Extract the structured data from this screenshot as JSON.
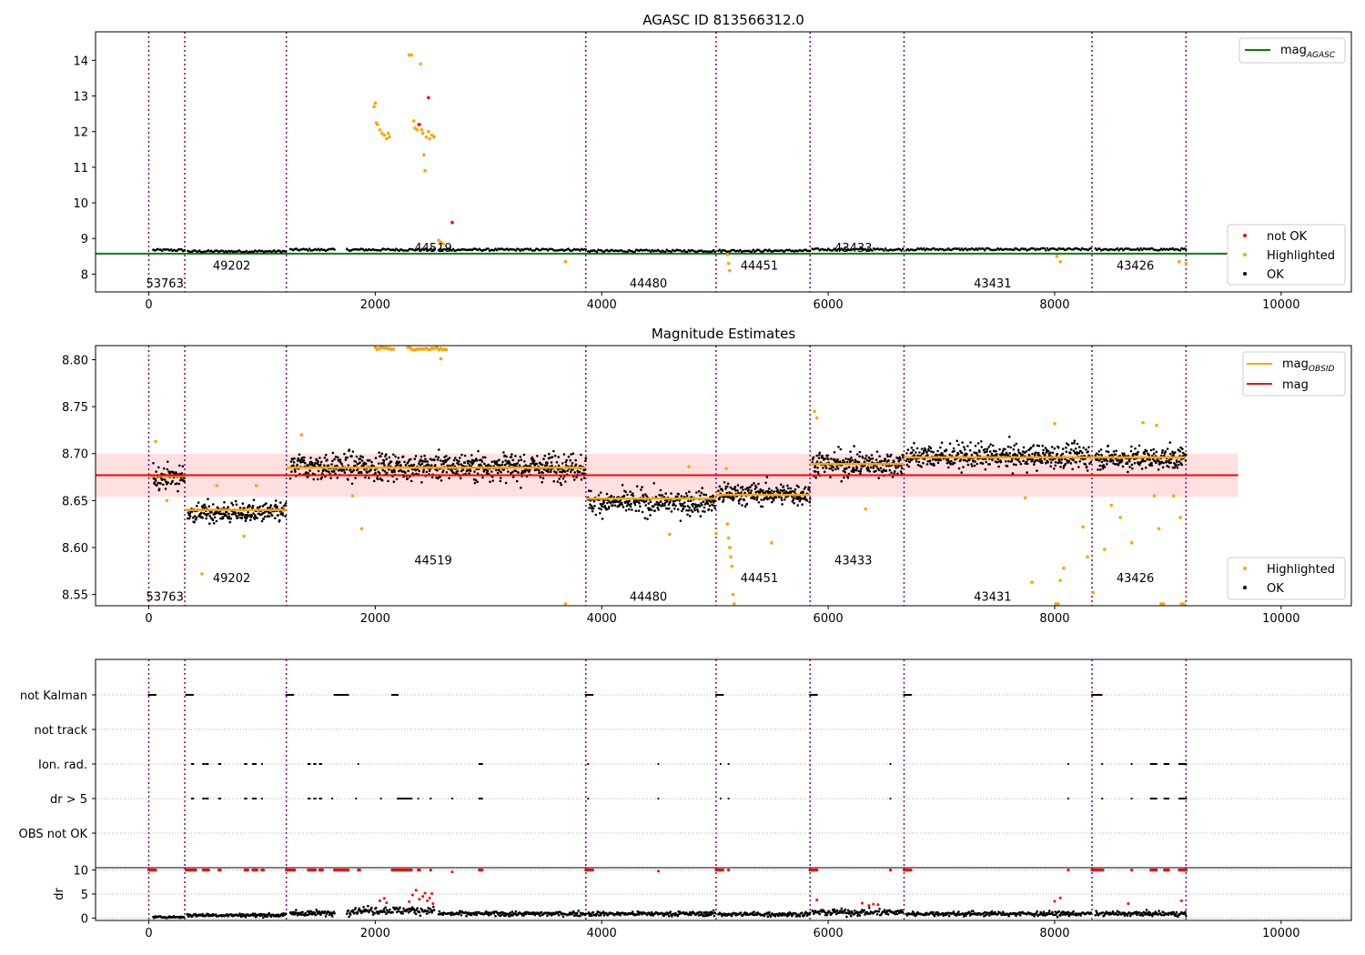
{
  "chart_data": [
    {
      "type": "scatter",
      "title": "AGASC ID 813566312.0",
      "xlim": [
        -470,
        10620
      ],
      "ylim": [
        7.5,
        14.8
      ],
      "xticks": [
        0,
        2000,
        4000,
        6000,
        8000,
        10000
      ],
      "yticks": [
        8,
        9,
        10,
        11,
        12,
        13,
        14
      ],
      "obsid_boundaries": [
        0,
        318,
        1215,
        3860,
        5010,
        5840,
        6670,
        8330,
        9160
      ],
      "obsid_labels": [
        {
          "text": "53763",
          "x": 0,
          "y": 7.75
        },
        {
          "text": "49202",
          "x": 590,
          "y": 8.25
        },
        {
          "text": "44519",
          "x": 2370,
          "y": 8.75
        },
        {
          "text": "44480",
          "x": 4270,
          "y": 7.75
        },
        {
          "text": "44451",
          "x": 5250,
          "y": 8.25
        },
        {
          "text": "43433",
          "x": 6080,
          "y": 8.75
        },
        {
          "text": "43431",
          "x": 7310,
          "y": 7.75
        },
        {
          "text": "43426",
          "x": 8570,
          "y": 8.25
        }
      ],
      "mag_agasc": 8.575,
      "mag_agasc_xrange": [
        -470,
        9620
      ],
      "ok_segments": [
        {
          "x0": 40,
          "x1": 315,
          "y": 8.675
        },
        {
          "x0": 345,
          "x1": 1210,
          "y": 8.64
        },
        {
          "x0": 1250,
          "x1": 1640,
          "y": 8.685
        },
        {
          "x0": 1750,
          "x1": 2520,
          "y": 8.685
        },
        {
          "x0": 2560,
          "x1": 3860,
          "y": 8.685
        },
        {
          "x0": 3880,
          "x1": 5000,
          "y": 8.652
        },
        {
          "x0": 5030,
          "x1": 5840,
          "y": 8.657
        },
        {
          "x0": 5860,
          "x1": 6660,
          "y": 8.69
        },
        {
          "x0": 6690,
          "x1": 8320,
          "y": 8.697
        },
        {
          "x0": 8360,
          "x1": 9160,
          "y": 8.695
        }
      ],
      "highlighted_points": [
        [
          1990,
          12.7
        ],
        [
          2000,
          12.8
        ],
        [
          2010,
          12.25
        ],
        [
          2020,
          12.2
        ],
        [
          2040,
          12.05
        ],
        [
          2060,
          11.95
        ],
        [
          2080,
          11.9
        ],
        [
          2100,
          11.8
        ],
        [
          2115,
          11.95
        ],
        [
          2125,
          11.85
        ],
        [
          2300,
          14.15
        ],
        [
          2320,
          14.15
        ],
        [
          2340,
          12.3
        ],
        [
          2350,
          12.1
        ],
        [
          2370,
          12.05
        ],
        [
          2380,
          12.2
        ],
        [
          2400,
          13.9
        ],
        [
          2410,
          12.05
        ],
        [
          2420,
          11.95
        ],
        [
          2430,
          11.35
        ],
        [
          2440,
          10.9
        ],
        [
          2450,
          11.85
        ],
        [
          2470,
          12.0
        ],
        [
          2480,
          11.8
        ],
        [
          2500,
          11.9
        ],
        [
          2520,
          11.85
        ],
        [
          2560,
          8.95
        ],
        [
          2580,
          8.9
        ],
        [
          2600,
          8.85
        ],
        [
          3680,
          8.35
        ],
        [
          5110,
          8.55
        ],
        [
          5120,
          8.3
        ],
        [
          5130,
          8.1
        ],
        [
          8020,
          8.5
        ],
        [
          8050,
          8.35
        ],
        [
          9100,
          8.35
        ],
        [
          9160,
          8.3
        ]
      ],
      "not_ok_points": [
        [
          2470,
          12.95
        ],
        [
          2680,
          9.45
        ],
        [
          2390,
          12.2
        ]
      ],
      "legend_upper": {
        "position": "upper right",
        "entries": [
          {
            "label": "mag",
            "sub": "AGASC",
            "color": "#008000"
          }
        ]
      },
      "legend_lower": {
        "position": "lower right",
        "entries": [
          {
            "label": "not OK",
            "color": "#ff0000"
          },
          {
            "label": "Highlighted",
            "color": "#ffa500"
          },
          {
            "label": "OK",
            "color": "#000000"
          }
        ]
      }
    },
    {
      "type": "scatter",
      "title": "Magnitude Estimates",
      "xlim": [
        -470,
        10620
      ],
      "ylim": [
        8.538,
        8.815
      ],
      "xticks": [
        0,
        2000,
        4000,
        6000,
        8000,
        10000
      ],
      "yticks": [
        8.55,
        8.6,
        8.65,
        8.7,
        8.75,
        8.8
      ],
      "ytick_labels": [
        "8.55",
        "8.60",
        "8.65",
        "8.70",
        "8.75",
        "8.80"
      ],
      "mag": 8.677,
      "mag_band": [
        8.654,
        8.7
      ],
      "mag_xrange": [
        -470,
        9620
      ],
      "mag_obsid": [
        {
          "x0": 0,
          "x1": 318,
          "y": 8.676
        },
        {
          "x0": 318,
          "x1": 1215,
          "y": 8.64
        },
        {
          "x0": 1215,
          "x1": 3860,
          "y": 8.685
        },
        {
          "x0": 3860,
          "x1": 5010,
          "y": 8.652
        },
        {
          "x0": 5010,
          "x1": 5840,
          "y": 8.656
        },
        {
          "x0": 5840,
          "x1": 6670,
          "y": 8.689
        },
        {
          "x0": 6670,
          "x1": 8330,
          "y": 8.696
        },
        {
          "x0": 8330,
          "x1": 9160,
          "y": 8.696
        }
      ],
      "obsid_labels": [
        {
          "text": "53763",
          "x": 0,
          "y": 8.548
        },
        {
          "text": "49202",
          "x": 590,
          "y": 8.568
        },
        {
          "text": "44519",
          "x": 2370,
          "y": 8.587
        },
        {
          "text": "44480",
          "x": 4270,
          "y": 8.548
        },
        {
          "text": "44451",
          "x": 5250,
          "y": 8.568
        },
        {
          "text": "43433",
          "x": 6080,
          "y": 8.587
        },
        {
          "text": "43431",
          "x": 7310,
          "y": 8.548
        },
        {
          "text": "43426",
          "x": 8570,
          "y": 8.568
        }
      ],
      "ok_segments": [
        {
          "x0": 40,
          "x1": 315,
          "y": 8.675,
          "s": 0.01
        },
        {
          "x0": 345,
          "x1": 1210,
          "y": 8.637,
          "s": 0.009
        },
        {
          "x0": 1250,
          "x1": 3860,
          "y": 8.686,
          "s": 0.012
        },
        {
          "x0": 3880,
          "x1": 5000,
          "y": 8.648,
          "s": 0.011
        },
        {
          "x0": 5030,
          "x1": 5840,
          "y": 8.657,
          "s": 0.01
        },
        {
          "x0": 5860,
          "x1": 6660,
          "y": 8.689,
          "s": 0.012
        },
        {
          "x0": 6690,
          "x1": 8320,
          "y": 8.697,
          "s": 0.011
        },
        {
          "x0": 8360,
          "x1": 9160,
          "y": 8.695,
          "s": 0.01
        }
      ],
      "highlighted_points": [
        [
          60,
          8.713
        ],
        [
          160,
          8.65
        ],
        [
          470,
          8.572
        ],
        [
          600,
          8.666
        ],
        [
          840,
          8.612
        ],
        [
          950,
          8.666
        ],
        [
          1350,
          8.72
        ],
        [
          1800,
          8.655
        ],
        [
          1880,
          8.62
        ],
        [
          2580,
          8.801
        ],
        [
          3680,
          8.54
        ],
        [
          4600,
          8.614
        ],
        [
          4770,
          8.686
        ],
        [
          5010,
          8.615
        ],
        [
          5100,
          8.684
        ],
        [
          5110,
          8.625
        ],
        [
          5120,
          8.61
        ],
        [
          5130,
          8.6
        ],
        [
          5140,
          8.59
        ],
        [
          5150,
          8.58
        ],
        [
          5160,
          8.55
        ],
        [
          5170,
          8.54
        ],
        [
          5500,
          8.605
        ],
        [
          5880,
          8.745
        ],
        [
          5900,
          8.738
        ],
        [
          6330,
          8.641
        ],
        [
          7740,
          8.653
        ],
        [
          7800,
          8.563
        ],
        [
          8000,
          8.732
        ],
        [
          8010,
          8.54
        ],
        [
          8030,
          8.54
        ],
        [
          8050,
          8.565
        ],
        [
          8080,
          8.578
        ],
        [
          8250,
          8.622
        ],
        [
          8290,
          8.59
        ],
        [
          8340,
          8.552
        ],
        [
          8440,
          8.598
        ],
        [
          8500,
          8.645
        ],
        [
          8580,
          8.632
        ],
        [
          8680,
          8.605
        ],
        [
          8780,
          8.733
        ],
        [
          8880,
          8.655
        ],
        [
          8900,
          8.73
        ],
        [
          8920,
          8.62
        ],
        [
          8940,
          8.54
        ],
        [
          8960,
          8.54
        ],
        [
          9050,
          8.655
        ],
        [
          9110,
          8.632
        ],
        [
          9120,
          8.54
        ],
        [
          9140,
          8.54
        ]
      ],
      "highlighted_clusters": [
        {
          "x0": 2000,
          "x1": 2170,
          "y": 8.812
        },
        {
          "x0": 2290,
          "x1": 2630,
          "y": 8.812
        }
      ],
      "legend_upper": {
        "position": "upper right",
        "entries": [
          {
            "label": "mag",
            "sub": "OBSID",
            "color": "#ffa500"
          },
          {
            "label": "mag",
            "color": "#ff0000"
          }
        ]
      },
      "legend_lower": {
        "position": "lower right",
        "entries": [
          {
            "label": "Highlighted",
            "color": "#ffa500"
          },
          {
            "label": "OK",
            "color": "#000000"
          }
        ]
      }
    },
    {
      "type": "scatter",
      "title": "",
      "xlim": [
        -470,
        10620
      ],
      "flag_rows": [
        "not Kalman",
        "not track",
        "Ion. rad.",
        "dr > 5",
        "OBS not OK"
      ],
      "flags": {
        "not Kalman": [
          [
            0,
            60
          ],
          [
            330,
            390
          ],
          [
            1215,
            1280
          ],
          [
            1640,
            1760
          ],
          [
            2150,
            2200
          ],
          [
            3860,
            3920
          ],
          [
            5010,
            5080
          ],
          [
            5840,
            5900
          ],
          [
            6670,
            6740
          ],
          [
            8330,
            8420
          ]
        ],
        "not track": [],
        "Ion. rad.": [
          [
            380,
            400
          ],
          [
            480,
            500
          ],
          [
            510,
            530
          ],
          [
            620,
            635
          ],
          [
            850,
            870
          ],
          [
            920,
            950
          ],
          [
            1000,
            1010
          ],
          [
            1410,
            1425
          ],
          [
            1460,
            1480
          ],
          [
            1510,
            1530
          ],
          [
            1850,
            1860
          ],
          [
            2920,
            2950
          ],
          [
            3880,
            3890
          ],
          [
            4500,
            4510
          ],
          [
            5050,
            5060
          ],
          [
            5120,
            5130
          ],
          [
            6550,
            6560
          ],
          [
            8120,
            8130
          ],
          [
            8420,
            8430
          ],
          [
            8680,
            8690
          ],
          [
            8850,
            8900
          ],
          [
            8970,
            9010
          ],
          [
            9100,
            9160
          ]
        ],
        "dr > 5": [
          [
            380,
            400
          ],
          [
            480,
            500
          ],
          [
            510,
            530
          ],
          [
            620,
            635
          ],
          [
            850,
            870
          ],
          [
            920,
            950
          ],
          [
            1000,
            1010
          ],
          [
            1410,
            1425
          ],
          [
            1460,
            1480
          ],
          [
            1510,
            1530
          ],
          [
            1620,
            1630
          ],
          [
            1830,
            1840
          ],
          [
            2050,
            2060
          ],
          [
            2200,
            2320
          ],
          [
            2380,
            2390
          ],
          [
            2490,
            2500
          ],
          [
            2680,
            2690
          ],
          [
            2920,
            2950
          ],
          [
            3880,
            3890
          ],
          [
            4500,
            4510
          ],
          [
            5050,
            5060
          ],
          [
            5120,
            5130
          ],
          [
            6550,
            6560
          ],
          [
            8120,
            8130
          ],
          [
            8420,
            8430
          ],
          [
            8680,
            8690
          ],
          [
            8850,
            8900
          ],
          [
            8970,
            9010
          ],
          [
            9100,
            9160
          ]
        ],
        "OBS not OK": []
      }
    },
    {
      "type": "scatter",
      "title": "",
      "ylabel": "dr",
      "xlim": [
        -470,
        10620
      ],
      "ylim": [
        -0.5,
        10.5
      ],
      "xticks": [
        0,
        2000,
        4000,
        6000,
        8000,
        10000
      ],
      "yticks": [
        0,
        5,
        10
      ],
      "ok_segments": [
        {
          "x0": 40,
          "x1": 310,
          "y": 0.2,
          "s": 0.15
        },
        {
          "x0": 340,
          "x1": 1210,
          "y": 0.6,
          "s": 0.3
        },
        {
          "x0": 1250,
          "x1": 1640,
          "y": 1.0,
          "s": 0.5
        },
        {
          "x0": 1750,
          "x1": 2520,
          "y": 1.6,
          "s": 0.7
        },
        {
          "x0": 2560,
          "x1": 3860,
          "y": 0.9,
          "s": 0.4
        },
        {
          "x0": 3880,
          "x1": 5000,
          "y": 0.9,
          "s": 0.4
        },
        {
          "x0": 5030,
          "x1": 5840,
          "y": 0.8,
          "s": 0.4
        },
        {
          "x0": 5860,
          "x1": 6660,
          "y": 1.2,
          "s": 0.6
        },
        {
          "x0": 6690,
          "x1": 8320,
          "y": 0.9,
          "s": 0.4
        },
        {
          "x0": 8360,
          "x1": 9160,
          "y": 0.9,
          "s": 0.4
        }
      ],
      "red_points": [
        [
          2040,
          3.6
        ],
        [
          2080,
          4.1
        ],
        [
          2100,
          3.2
        ],
        [
          2300,
          3.4
        ],
        [
          2330,
          4.8
        ],
        [
          2360,
          5.8
        ],
        [
          2390,
          3.9
        ],
        [
          2420,
          4.5
        ],
        [
          2440,
          5.2
        ],
        [
          2460,
          3.6
        ],
        [
          2480,
          4.2
        ],
        [
          2500,
          5.1
        ],
        [
          2510,
          3.0
        ],
        [
          5900,
          3.8
        ],
        [
          6300,
          3.1
        ],
        [
          6360,
          2.6
        ],
        [
          6400,
          2.9
        ],
        [
          6440,
          2.8
        ],
        [
          8000,
          3.5
        ],
        [
          8050,
          4.2
        ],
        [
          8650,
          3.0
        ],
        [
          9120,
          3.6
        ],
        [
          2680,
          9.6
        ],
        [
          4500,
          9.8
        ],
        [
          3880,
          10.0
        ]
      ],
      "red_at_ten": [
        [
          0,
          60
        ],
        [
          330,
          420
        ],
        [
          480,
          530
        ],
        [
          620,
          640
        ],
        [
          850,
          880
        ],
        [
          920,
          960
        ],
        [
          1000,
          1020
        ],
        [
          1215,
          1290
        ],
        [
          1410,
          1480
        ],
        [
          1510,
          1540
        ],
        [
          1640,
          1760
        ],
        [
          1850,
          1870
        ],
        [
          2150,
          2320
        ],
        [
          2380,
          2400
        ],
        [
          2490,
          2500
        ],
        [
          2920,
          2950
        ],
        [
          3860,
          3920
        ],
        [
          5010,
          5080
        ],
        [
          5120,
          5130
        ],
        [
          5840,
          5900
        ],
        [
          6550,
          6560
        ],
        [
          6670,
          6740
        ],
        [
          8120,
          8130
        ],
        [
          8330,
          8430
        ],
        [
          8680,
          8690
        ],
        [
          8850,
          8900
        ],
        [
          8970,
          9010
        ],
        [
          9100,
          9160
        ]
      ]
    }
  ]
}
